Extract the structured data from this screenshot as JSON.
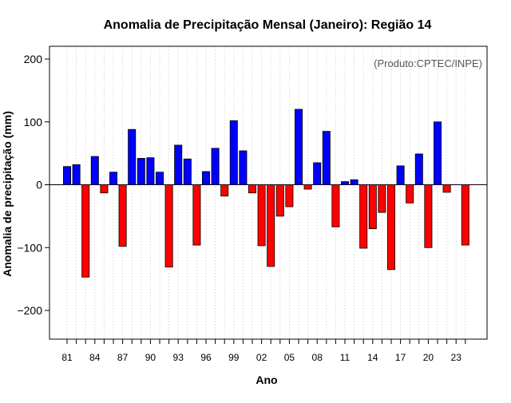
{
  "chart_data": {
    "type": "bar",
    "title": "Anomalia de Precipitação Mensal (Janeiro): Região 14",
    "xlabel": "Ano",
    "ylabel": "Anomalia de precipitação (mm)",
    "annotation": "(Produto:CPTEC/INPE)",
    "ylim": [
      -250,
      220
    ],
    "yticks": [
      -200,
      -100,
      0,
      100,
      200
    ],
    "grid": "vertical dotted lines at every year",
    "years": [
      1981,
      1982,
      1983,
      1984,
      1985,
      1986,
      1987,
      1988,
      1989,
      1990,
      1991,
      1992,
      1993,
      1994,
      1995,
      1996,
      1997,
      1998,
      1999,
      2000,
      2001,
      2002,
      2003,
      2004,
      2005,
      2006,
      2007,
      2008,
      2009,
      2010,
      2011,
      2012,
      2013,
      2014,
      2015,
      2016,
      2017,
      2018,
      2019,
      2020,
      2021,
      2022,
      2023,
      2024
    ],
    "values": [
      29,
      32,
      -147,
      45,
      -13,
      20,
      -98,
      88,
      42,
      43,
      20,
      -131,
      63,
      41,
      -96,
      21,
      58,
      -18,
      102,
      54,
      -13,
      -97,
      -130,
      -50,
      -35,
      120,
      -7,
      35,
      85,
      -67,
      5,
      8,
      -101,
      -70,
      -44,
      -135,
      30,
      -29,
      49,
      -100,
      100,
      -12,
      0,
      -96
    ],
    "xtick_labels": [
      {
        "label": "81",
        "year": 1981
      },
      {
        "label": "84",
        "year": 1984
      },
      {
        "label": "87",
        "year": 1987
      },
      {
        "label": "90",
        "year": 1990
      },
      {
        "label": "93",
        "year": 1993
      },
      {
        "label": "96",
        "year": 1996
      },
      {
        "label": "99",
        "year": 1999
      },
      {
        "label": "02",
        "year": 2002
      },
      {
        "label": "05",
        "year": 2005
      },
      {
        "label": "08",
        "year": 2008
      },
      {
        "label": "11",
        "year": 2011
      },
      {
        "label": "14",
        "year": 2014
      },
      {
        "label": "17",
        "year": 2017
      },
      {
        "label": "20",
        "year": 2020
      },
      {
        "label": "23",
        "year": 2023
      }
    ],
    "colors": {
      "positive": "#0000ff",
      "negative": "#ff0000",
      "grid": "#cccccc",
      "zero_line": "#000000",
      "frame": "#000000",
      "bar_edge": "#000000"
    }
  }
}
